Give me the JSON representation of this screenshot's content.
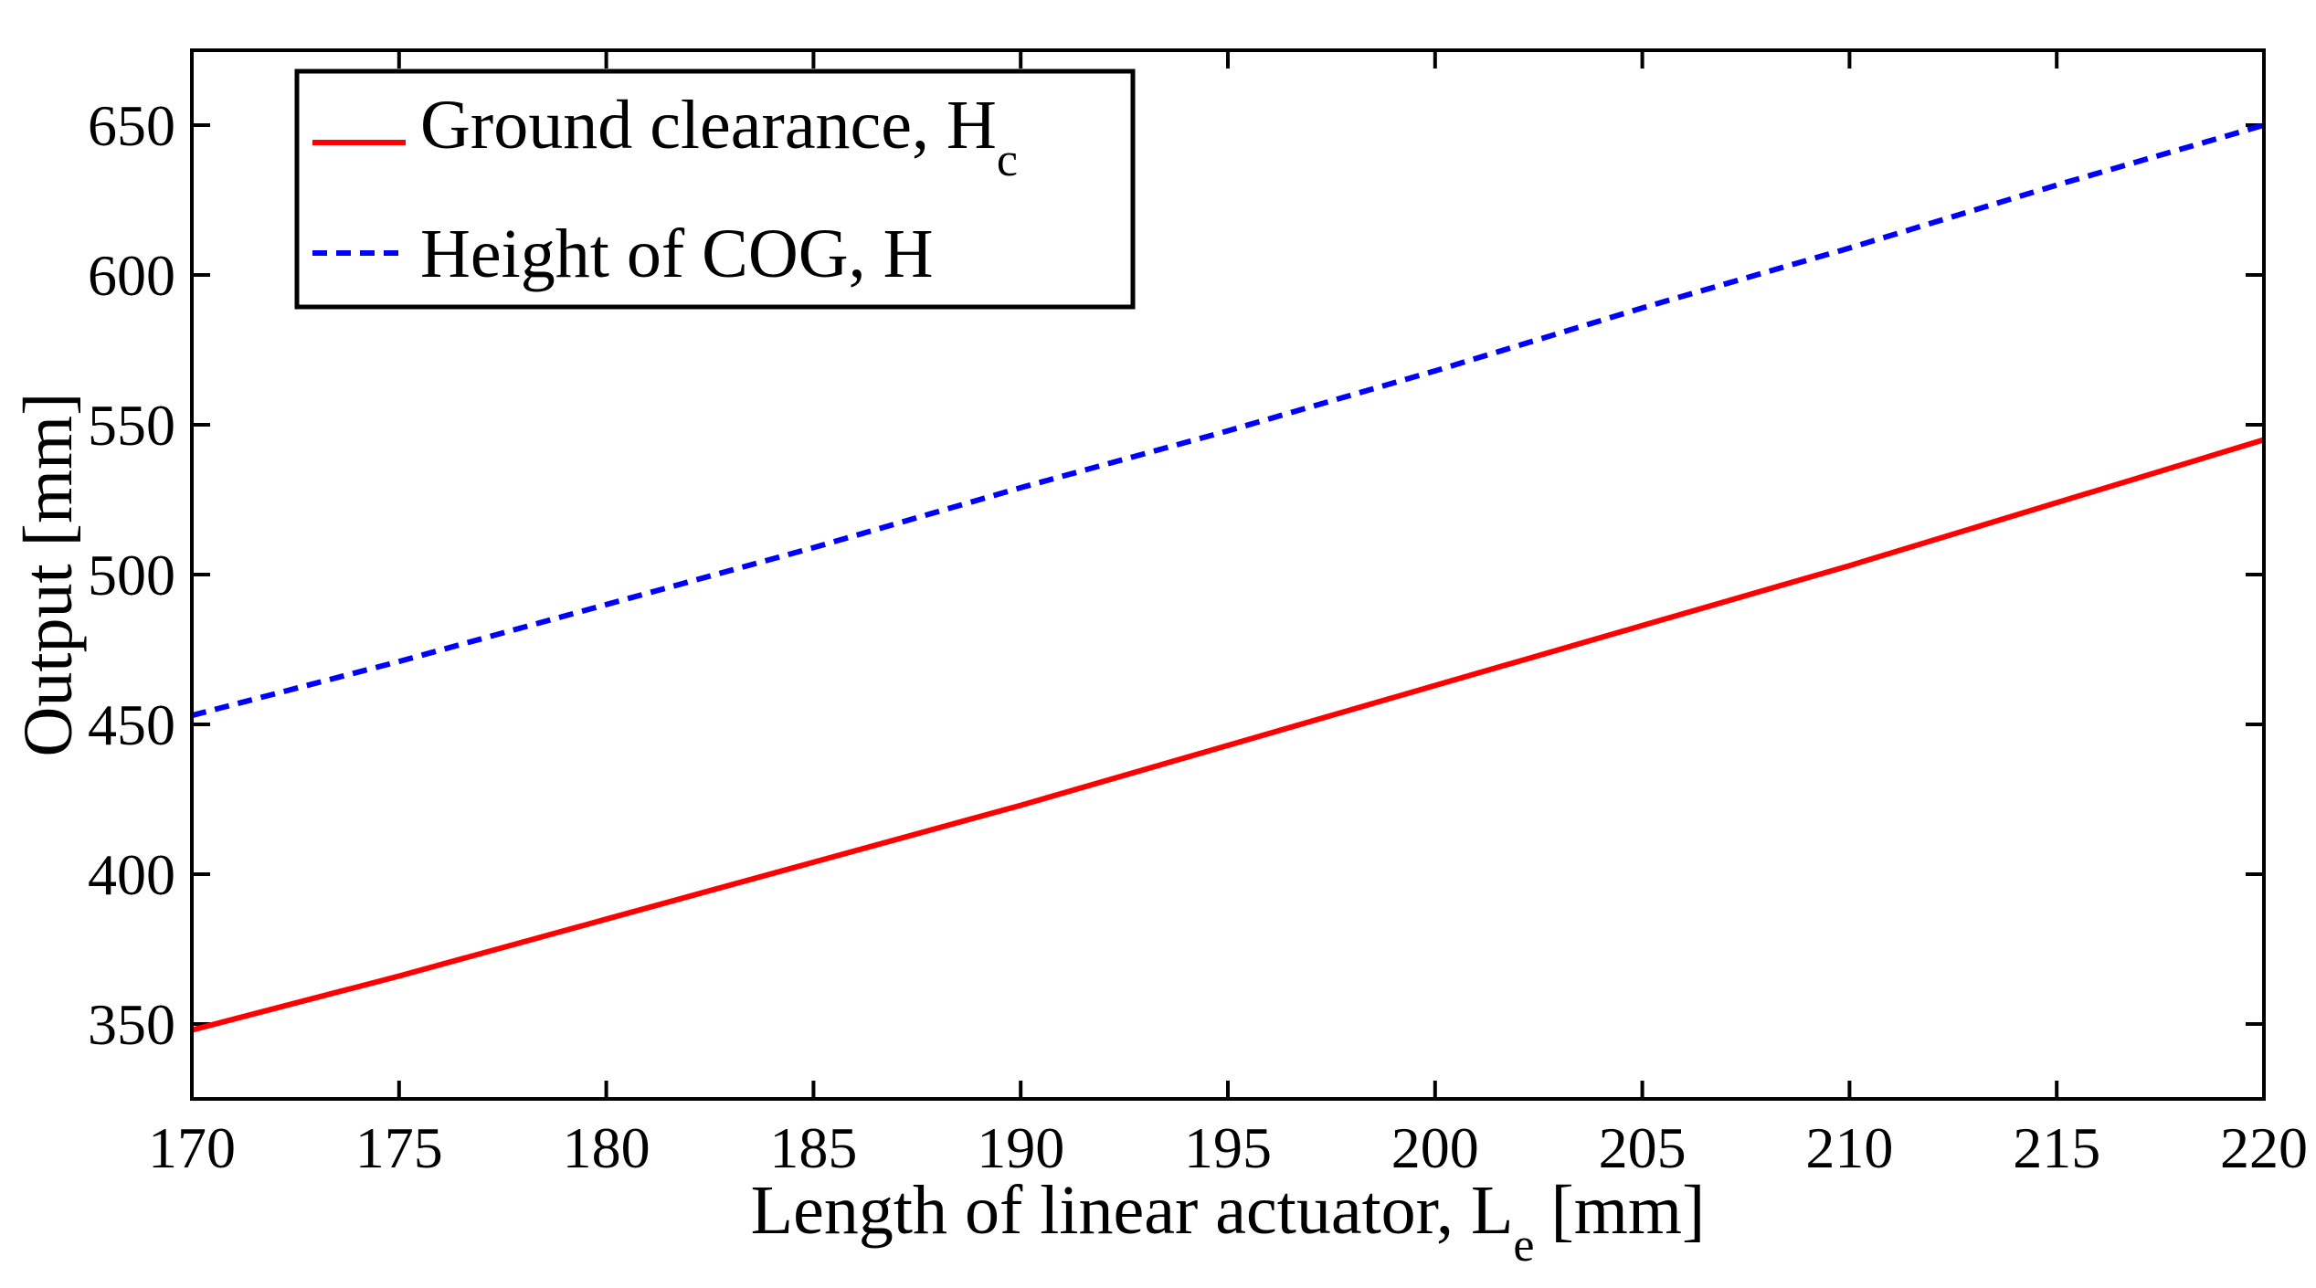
{
  "chart_data": {
    "type": "line",
    "title": "",
    "xlabel": "Length of linear actuator, L",
    "xlabel_subscript": "e",
    "xlabel_unit": "[mm]",
    "ylabel": "Output [mm]",
    "xlim": [
      170,
      220
    ],
    "ylim": [
      325,
      675
    ],
    "xticks": [
      170,
      175,
      180,
      185,
      190,
      195,
      200,
      205,
      210,
      215,
      220
    ],
    "yticks": [
      350,
      400,
      450,
      500,
      550,
      600,
      650
    ],
    "grid": false,
    "legend_position": "top-left",
    "series": [
      {
        "name": "Ground clearance, H",
        "subscript": "c",
        "color": "#ff0000",
        "style": "solid",
        "x": [
          170,
          175,
          180,
          185,
          190,
          195,
          200,
          205,
          210,
          215,
          220
        ],
        "y": [
          348,
          366,
          385,
          404,
          423,
          443,
          463,
          483,
          503,
          524,
          545
        ]
      },
      {
        "name": "Height of COG, H",
        "subscript": "",
        "color": "#0000ff",
        "style": "dashed",
        "x": [
          170,
          175,
          180,
          185,
          190,
          195,
          200,
          205,
          210,
          215,
          220
        ],
        "y": [
          453,
          471,
          490,
          509,
          529,
          548,
          568,
          589,
          609,
          630,
          650
        ]
      }
    ]
  }
}
